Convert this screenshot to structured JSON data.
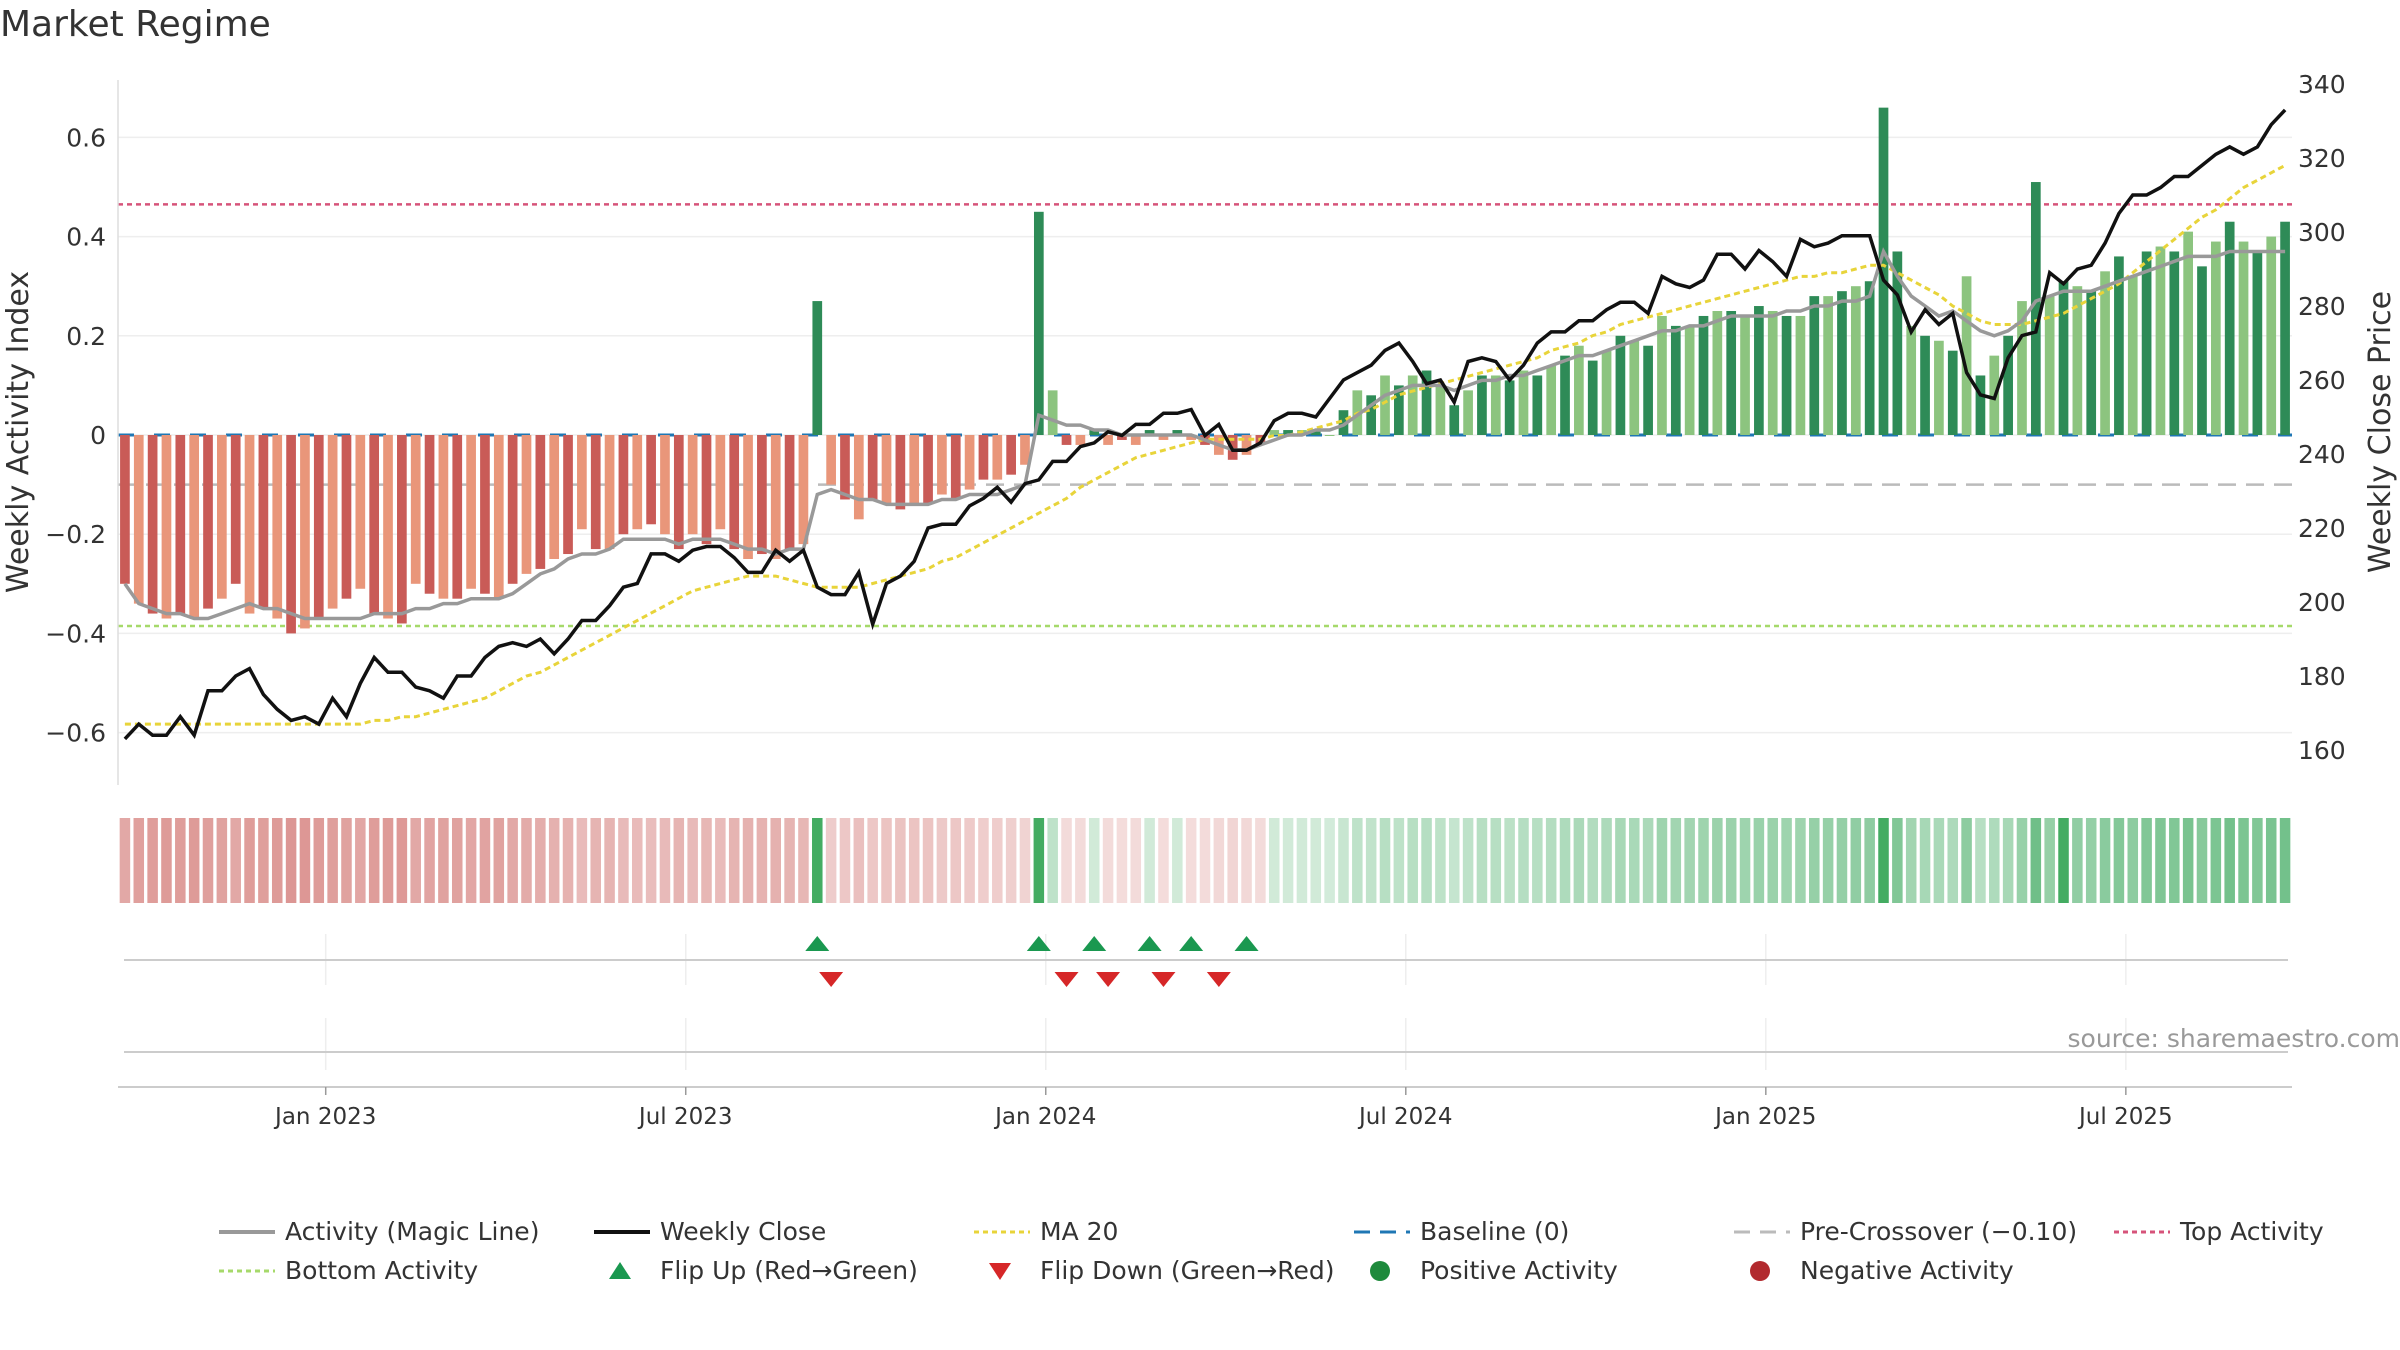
{
  "title": "Market Regime",
  "source": "source: sharemaestro.com",
  "colors": {
    "neg_strong": "#c95b57",
    "neg_weak": "#e9967a",
    "pos_strong": "#2e8b57",
    "pos_weak": "#8cc47f",
    "magic_line": "#999999",
    "close": "#111111",
    "ma": "#e8d43a",
    "baseline": "#1f77b4",
    "precross": "#bbbbbb",
    "top": "#d6537a",
    "bottom": "#a6d96a",
    "flip_up": "#1a9850",
    "flip_down": "#d62728"
  },
  "chart_data": {
    "type": "bar",
    "ylabel_left": "Weekly Activity Index",
    "ylabel_right": "Weekly Close Price",
    "x_ticks": [
      "Jan 2023",
      "Jul 2023",
      "Jan 2024",
      "Jul 2024",
      "Jan 2025",
      "Jul 2025"
    ],
    "x_tick_weeks": [
      14.5,
      40.5,
      66.5,
      92.5,
      118.5,
      144.5
    ],
    "yticks_left": [
      "0.6",
      "0.4",
      "0.2",
      "0",
      "−0.2",
      "−0.4",
      "−0.6"
    ],
    "yticks_right": [
      "340",
      "320",
      "300",
      "280",
      "260",
      "240",
      "220",
      "200",
      "180",
      "160"
    ],
    "ylim_left": [
      -0.72,
      0.7
    ],
    "ylim_right": [
      150,
      340
    ],
    "reference_lines": {
      "baseline": 0,
      "pre_crossover": -0.1,
      "top_activity": 0.465,
      "bottom_activity": -0.385
    },
    "activity": [
      -0.3,
      -0.34,
      -0.36,
      -0.37,
      -0.36,
      -0.37,
      -0.35,
      -0.33,
      -0.3,
      -0.36,
      -0.35,
      -0.37,
      -0.4,
      -0.39,
      -0.37,
      -0.35,
      -0.33,
      -0.31,
      -0.36,
      -0.37,
      -0.38,
      -0.3,
      -0.32,
      -0.33,
      -0.33,
      -0.31,
      -0.32,
      -0.33,
      -0.3,
      -0.28,
      -0.27,
      -0.25,
      -0.24,
      -0.19,
      -0.23,
      -0.23,
      -0.2,
      -0.19,
      -0.18,
      -0.2,
      -0.23,
      -0.2,
      -0.22,
      -0.19,
      -0.23,
      -0.25,
      -0.24,
      -0.25,
      -0.23,
      -0.22,
      0.27,
      -0.1,
      -0.13,
      -0.17,
      -0.13,
      -0.14,
      -0.15,
      -0.14,
      -0.14,
      -0.12,
      -0.13,
      -0.11,
      -0.09,
      -0.09,
      -0.08,
      -0.06,
      0.45,
      0.09,
      -0.02,
      -0.02,
      0.01,
      -0.02,
      -0.01,
      -0.02,
      0.01,
      -0.01,
      0.01,
      -0.01,
      -0.02,
      -0.04,
      -0.05,
      -0.04,
      -0.02,
      0.01,
      0.01,
      0.01,
      0.01,
      0.0,
      0.05,
      0.09,
      0.08,
      0.12,
      0.1,
      0.12,
      0.13,
      0.1,
      0.06,
      0.09,
      0.12,
      0.12,
      0.11,
      0.13,
      0.12,
      0.14,
      0.16,
      0.18,
      0.15,
      0.17,
      0.2,
      0.19,
      0.18,
      0.24,
      0.22,
      0.22,
      0.24,
      0.25,
      0.25,
      0.24,
      0.26,
      0.25,
      0.24,
      0.24,
      0.28,
      0.28,
      0.29,
      0.3,
      0.31,
      0.66,
      0.37,
      0.22,
      0.2,
      0.19,
      0.17,
      0.32,
      0.12,
      0.16,
      0.2,
      0.27,
      0.51,
      0.28,
      0.31,
      0.3,
      0.29,
      0.33,
      0.36,
      0.32,
      0.37,
      0.38,
      0.37,
      0.41,
      0.34,
      0.39,
      0.43,
      0.39,
      0.37,
      0.4,
      0.43
    ],
    "magic_line": [
      -0.3,
      -0.34,
      -0.35,
      -0.36,
      -0.36,
      -0.37,
      -0.37,
      -0.36,
      -0.35,
      -0.34,
      -0.35,
      -0.35,
      -0.36,
      -0.37,
      -0.37,
      -0.37,
      -0.37,
      -0.37,
      -0.36,
      -0.36,
      -0.36,
      -0.35,
      -0.35,
      -0.34,
      -0.34,
      -0.33,
      -0.33,
      -0.33,
      -0.32,
      -0.3,
      -0.28,
      -0.27,
      -0.25,
      -0.24,
      -0.24,
      -0.23,
      -0.21,
      -0.21,
      -0.21,
      -0.21,
      -0.22,
      -0.21,
      -0.21,
      -0.21,
      -0.22,
      -0.23,
      -0.23,
      -0.24,
      -0.23,
      -0.23,
      -0.12,
      -0.11,
      -0.12,
      -0.13,
      -0.13,
      -0.14,
      -0.14,
      -0.14,
      -0.14,
      -0.13,
      -0.13,
      -0.12,
      -0.12,
      -0.12,
      -0.11,
      -0.1,
      0.04,
      0.03,
      0.02,
      0.02,
      0.01,
      0.01,
      0.0,
      0.0,
      0.0,
      0.0,
      0.0,
      0.0,
      -0.01,
      -0.02,
      -0.03,
      -0.03,
      -0.02,
      -0.01,
      0.0,
      0.0,
      0.01,
      0.01,
      0.02,
      0.04,
      0.06,
      0.08,
      0.09,
      0.1,
      0.1,
      0.1,
      0.09,
      0.1,
      0.11,
      0.11,
      0.12,
      0.12,
      0.13,
      0.14,
      0.15,
      0.16,
      0.16,
      0.17,
      0.18,
      0.19,
      0.2,
      0.21,
      0.21,
      0.22,
      0.22,
      0.23,
      0.24,
      0.24,
      0.24,
      0.24,
      0.25,
      0.25,
      0.26,
      0.26,
      0.27,
      0.27,
      0.28,
      0.37,
      0.32,
      0.28,
      0.26,
      0.24,
      0.25,
      0.23,
      0.21,
      0.2,
      0.21,
      0.23,
      0.27,
      0.28,
      0.29,
      0.29,
      0.29,
      0.3,
      0.31,
      0.32,
      0.33,
      0.34,
      0.35,
      0.36,
      0.36,
      0.36,
      0.37,
      0.37,
      0.37,
      0.37,
      0.37
    ],
    "weekly_close": [
      163,
      167,
      164,
      164,
      169,
      164,
      176,
      176,
      180,
      182,
      175,
      171,
      168,
      169,
      167,
      174,
      169,
      178,
      185,
      181,
      181,
      177,
      176,
      174,
      180,
      180,
      185,
      188,
      189,
      188,
      190,
      186,
      190,
      195,
      195,
      199,
      204,
      205,
      213,
      213,
      211,
      214,
      215,
      215,
      212,
      208,
      208,
      214,
      211,
      214,
      204,
      202,
      202,
      208,
      194,
      205,
      207,
      211,
      220,
      221,
      221,
      226,
      228,
      231,
      227,
      232,
      233,
      238,
      238,
      242,
      243,
      246,
      245,
      248,
      248,
      251,
      251,
      252,
      245,
      248,
      241,
      241,
      243,
      249,
      251,
      251,
      250,
      255,
      260,
      262,
      264,
      268,
      270,
      265,
      259,
      260,
      254,
      265,
      266,
      265,
      260,
      264,
      270,
      273,
      273,
      276,
      276,
      279,
      281,
      281,
      278,
      288,
      286,
      285,
      287,
      294,
      294,
      290,
      295,
      292,
      288,
      298,
      296,
      297,
      299,
      299,
      299,
      287,
      283,
      273,
      279,
      275,
      278,
      262,
      256,
      255,
      266,
      272,
      273,
      289,
      286,
      290,
      291,
      297,
      305,
      310,
      310,
      312,
      315,
      315,
      318,
      321,
      323,
      321,
      323,
      329,
      333
    ],
    "ma20": [
      167,
      167,
      167,
      167,
      167,
      167,
      167,
      167,
      167,
      167,
      167,
      167,
      167,
      167,
      167,
      167,
      167,
      167,
      168,
      168,
      169,
      169,
      170,
      171,
      172,
      173,
      174,
      176,
      178,
      180,
      181,
      183,
      185,
      187,
      189,
      191,
      193,
      195,
      197,
      199,
      201,
      203,
      204,
      205,
      206,
      207,
      207,
      207,
      206,
      205,
      204,
      204,
      204,
      204,
      205,
      206,
      207,
      208,
      209,
      211,
      212,
      214,
      216,
      218,
      220,
      222,
      224,
      226,
      228,
      231,
      233,
      235,
      237,
      239,
      240,
      241,
      242,
      243,
      244,
      244,
      244,
      244,
      244,
      245,
      245,
      246,
      247,
      248,
      249,
      251,
      252,
      254,
      256,
      257,
      258,
      259,
      260,
      261,
      262,
      263,
      264,
      265,
      266,
      268,
      269,
      270,
      272,
      273,
      275,
      276,
      277,
      278,
      279,
      280,
      281,
      282,
      283,
      284,
      285,
      286,
      287,
      288,
      288,
      289,
      289,
      290,
      291,
      291,
      289,
      287,
      285,
      283,
      280,
      278,
      276,
      275,
      275,
      275,
      276,
      277,
      278,
      280,
      282,
      284,
      286,
      289,
      292,
      295,
      298,
      301,
      304,
      306,
      309,
      312,
      314,
      316,
      318
    ],
    "flip_up_weeks": [
      50,
      66,
      70,
      74,
      77,
      81
    ],
    "flip_down_weeks": [
      51,
      68,
      71,
      75,
      79
    ],
    "legend": [
      "Activity (Magic Line)",
      "Weekly Close",
      "MA 20",
      "Baseline (0)",
      "Pre-Crossover (−0.10)",
      "Top Activity",
      "Bottom Activity",
      "Flip Up (Red→Green)",
      "Flip Down (Green→Red)",
      "Positive Activity",
      "Negative Activity"
    ]
  }
}
